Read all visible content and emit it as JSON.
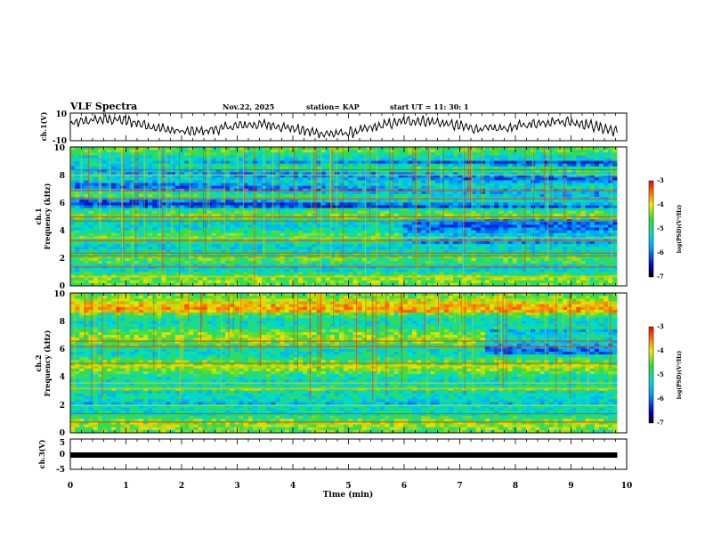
{
  "header": {
    "title": "VLF Spectra",
    "date": "Nov.22, 2025",
    "station": "station= KAP",
    "start": "start  UT  =   11: 30: 1"
  },
  "colors": {
    "low": "#1a1aa8",
    "mid": "#22d6c0",
    "high": "#d61a1a",
    "trace": "#000000"
  },
  "chart_data": [
    {
      "type": "line",
      "panel": "ch1-waveform",
      "ylabel": "ch.1(V)",
      "ylim": [
        -10,
        10
      ],
      "yticks": [
        "10",
        "-10"
      ],
      "xlim": [
        0,
        10
      ]
    },
    {
      "type": "heatmap",
      "panel": "ch1-spectrogram",
      "ylabel": "ch.1",
      "ylabel2": "Frequency  (kHz)",
      "ylim": [
        0,
        10
      ],
      "yticks": [
        "0",
        "2",
        "4",
        "6",
        "8",
        "10"
      ],
      "xlim": [
        0,
        10
      ],
      "colorbar": {
        "label": "log(PSD)(V²/Hz)",
        "range": [
          -7,
          -3
        ],
        "ticks": [
          "-3",
          "-4",
          "-5",
          "-6",
          "-7"
        ]
      }
    },
    {
      "type": "heatmap",
      "panel": "ch2-spectrogram",
      "ylabel": "ch.2",
      "ylabel2": "Frequency  (kHz)",
      "ylim": [
        0,
        10
      ],
      "yticks": [
        "0",
        "2",
        "4",
        "6",
        "8",
        "10"
      ],
      "xlim": [
        0,
        10
      ],
      "colorbar": {
        "label": "log(PSD)(V²/Hz)",
        "range": [
          -7,
          -3
        ],
        "ticks": [
          "-3",
          "-4",
          "-5",
          "-6",
          "-7"
        ]
      }
    },
    {
      "type": "line",
      "panel": "ch3-waveform",
      "ylabel": "ch.3(V)",
      "ylim": [
        -5,
        5
      ],
      "yticks": [
        "5",
        "0",
        "-5"
      ],
      "xlim": [
        0,
        10
      ],
      "constant_value": -0.3
    }
  ],
  "xaxis": {
    "label": "Time  (min)",
    "ticks": [
      "0",
      "1",
      "2",
      "3",
      "4",
      "5",
      "6",
      "7",
      "8",
      "9",
      "10"
    ],
    "range": [
      0,
      10
    ],
    "end_minute": 9.83
  }
}
